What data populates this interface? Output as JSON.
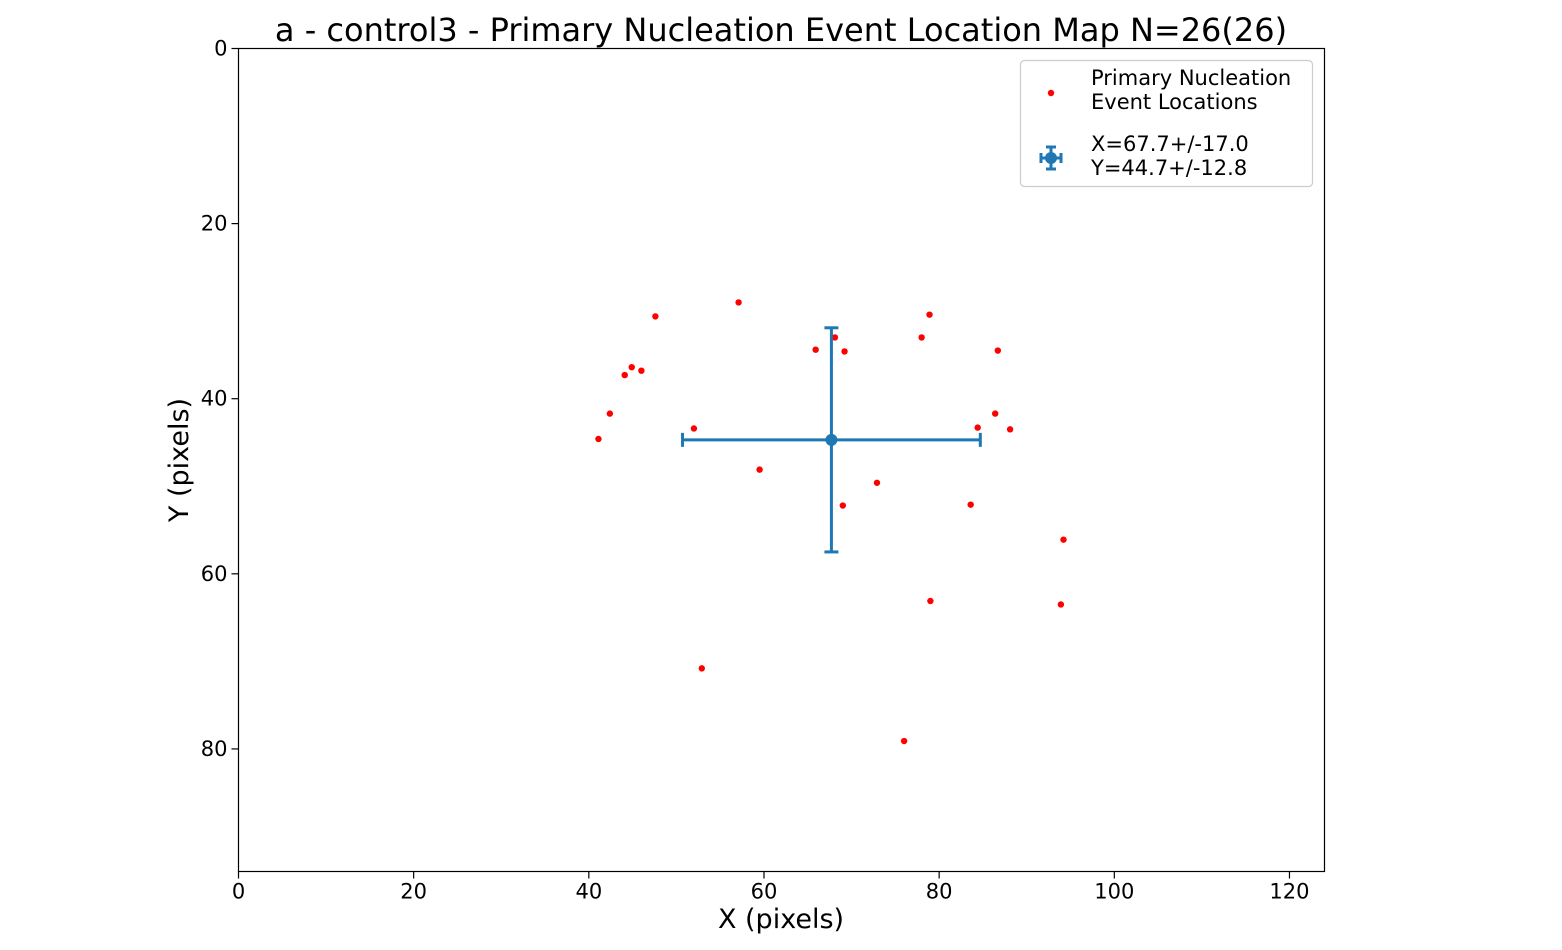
{
  "chart_data": {
    "type": "scatter",
    "title": "a - control3 - Primary Nucleation Event Location Map N=26(26)",
    "xlabel": "X (pixels)",
    "ylabel": "Y (pixels)",
    "xlim": [
      0,
      124
    ],
    "ylim": [
      94,
      0
    ],
    "y_inverted": true,
    "xticks": [
      0,
      20,
      40,
      60,
      80,
      100,
      120
    ],
    "yticks": [
      0,
      20,
      40,
      60,
      80
    ],
    "grid": false,
    "legend_placement": "top-right",
    "series": [
      {
        "name": "Primary Nucleation Event Locations",
        "legend_label": [
          "Primary Nucleation",
          "Event Locations"
        ],
        "color": "#ff0000",
        "marker": "dot",
        "points": [
          [
            57.1,
            29.0
          ],
          [
            47.6,
            30.6
          ],
          [
            78.9,
            30.4
          ],
          [
            78.0,
            33.0
          ],
          [
            68.1,
            33.0
          ],
          [
            65.9,
            34.4
          ],
          [
            69.2,
            34.6
          ],
          [
            86.7,
            34.5
          ],
          [
            44.9,
            36.4
          ],
          [
            46.0,
            36.8
          ],
          [
            44.1,
            37.3
          ],
          [
            42.4,
            41.7
          ],
          [
            86.4,
            41.7
          ],
          [
            41.1,
            44.6
          ],
          [
            52.0,
            43.4
          ],
          [
            84.4,
            43.3
          ],
          [
            88.1,
            43.5
          ],
          [
            59.5,
            48.1
          ],
          [
            72.9,
            49.6
          ],
          [
            83.6,
            52.1
          ],
          [
            69.0,
            52.2
          ],
          [
            94.2,
            56.1
          ],
          [
            79.0,
            63.1
          ],
          [
            93.9,
            63.5
          ],
          [
            52.9,
            70.8
          ],
          [
            76.0,
            79.1
          ]
        ]
      },
      {
        "name": "X=67.7+/-17.0 Y=44.7+/-12.8",
        "legend_label": [
          "X=67.7+/-17.0",
          "Y=44.7+/-12.8"
        ],
        "color": "#1f77b4",
        "marker": "errorbar",
        "x": 67.7,
        "y": 44.7,
        "xerr": 17.0,
        "yerr": 12.8
      }
    ]
  }
}
